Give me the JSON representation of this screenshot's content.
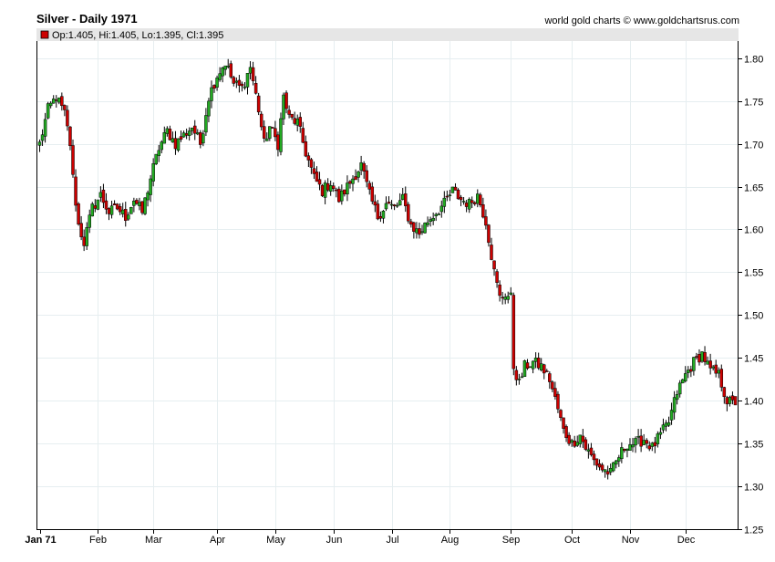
{
  "header": {
    "title": "Silver - Daily 1971",
    "credit": "world gold charts © www.goldchartsrus.com"
  },
  "legend": {
    "text": "Op:1.405, Hi:1.405, Lo:1.395, Cl:1.395",
    "swatch_color": "#cc0000"
  },
  "colors": {
    "up": "#22aa22",
    "down": "#cc0000",
    "wick": "#000000",
    "grid": "#e6eef0",
    "legend_bg": "#e6e6e6"
  },
  "chart_data": {
    "type": "candlestick",
    "title": "Silver - Daily 1971",
    "x_tick_labels": [
      "Jan 71",
      "Feb",
      "Mar",
      "Apr",
      "May",
      "Jun",
      "Jul",
      "Aug",
      "Sep",
      "Oct",
      "Nov",
      "Dec"
    ],
    "y_ticks": [
      1.25,
      1.3,
      1.35,
      1.4,
      1.45,
      1.5,
      1.55,
      1.6,
      1.65,
      1.7,
      1.75,
      1.8
    ],
    "y_tick_labels": [
      "1.25",
      "1.30",
      "1.35",
      "1.40",
      "1.45",
      "1.50",
      "1.55",
      "1.60",
      "1.65",
      "1.70",
      "1.75",
      "1.80"
    ],
    "ylim": [
      1.25,
      1.82
    ],
    "trading_days": 252,
    "month_start_index": [
      0,
      21,
      41,
      64,
      85,
      106,
      127,
      148,
      170,
      192,
      213,
      233
    ],
    "close_anchors": [
      [
        0,
        1.7
      ],
      [
        3,
        1.74
      ],
      [
        6,
        1.755
      ],
      [
        9,
        1.735
      ],
      [
        11,
        1.7
      ],
      [
        12,
        1.66
      ],
      [
        14,
        1.605
      ],
      [
        16,
        1.585
      ],
      [
        19,
        1.625
      ],
      [
        22,
        1.64
      ],
      [
        25,
        1.62
      ],
      [
        28,
        1.625
      ],
      [
        31,
        1.615
      ],
      [
        34,
        1.635
      ],
      [
        37,
        1.62
      ],
      [
        40,
        1.66
      ],
      [
        43,
        1.695
      ],
      [
        46,
        1.715
      ],
      [
        49,
        1.7
      ],
      [
        52,
        1.71
      ],
      [
        55,
        1.72
      ],
      [
        58,
        1.7
      ],
      [
        61,
        1.755
      ],
      [
        64,
        1.78
      ],
      [
        67,
        1.795
      ],
      [
        70,
        1.77
      ],
      [
        73,
        1.765
      ],
      [
        76,
        1.79
      ],
      [
        79,
        1.74
      ],
      [
        81,
        1.7
      ],
      [
        83,
        1.72
      ],
      [
        86,
        1.7
      ],
      [
        88,
        1.755
      ],
      [
        90,
        1.73
      ],
      [
        93,
        1.725
      ],
      [
        96,
        1.69
      ],
      [
        99,
        1.66
      ],
      [
        102,
        1.645
      ],
      [
        105,
        1.655
      ],
      [
        108,
        1.635
      ],
      [
        111,
        1.65
      ],
      [
        114,
        1.665
      ],
      [
        116,
        1.675
      ],
      [
        119,
        1.64
      ],
      [
        122,
        1.615
      ],
      [
        125,
        1.63
      ],
      [
        128,
        1.625
      ],
      [
        131,
        1.635
      ],
      [
        134,
        1.605
      ],
      [
        137,
        1.595
      ],
      [
        140,
        1.61
      ],
      [
        143,
        1.62
      ],
      [
        146,
        1.63
      ],
      [
        149,
        1.645
      ],
      [
        152,
        1.635
      ],
      [
        155,
        1.63
      ],
      [
        158,
        1.64
      ],
      [
        161,
        1.61
      ],
      [
        164,
        1.55
      ],
      [
        166,
        1.52
      ],
      [
        168,
        1.525
      ],
      [
        170,
        1.52
      ],
      [
        171,
        1.44
      ],
      [
        173,
        1.42
      ],
      [
        175,
        1.44
      ],
      [
        178,
        1.445
      ],
      [
        181,
        1.44
      ],
      [
        184,
        1.425
      ],
      [
        187,
        1.39
      ],
      [
        189,
        1.365
      ],
      [
        192,
        1.35
      ],
      [
        195,
        1.36
      ],
      [
        197,
        1.345
      ],
      [
        200,
        1.33
      ],
      [
        203,
        1.32
      ],
      [
        206,
        1.315
      ],
      [
        209,
        1.335
      ],
      [
        212,
        1.35
      ],
      [
        215,
        1.35
      ],
      [
        218,
        1.355
      ],
      [
        221,
        1.345
      ],
      [
        224,
        1.36
      ],
      [
        227,
        1.375
      ],
      [
        230,
        1.41
      ],
      [
        233,
        1.43
      ],
      [
        236,
        1.445
      ],
      [
        239,
        1.455
      ],
      [
        242,
        1.435
      ],
      [
        245,
        1.43
      ],
      [
        248,
        1.4
      ],
      [
        251,
        1.395
      ]
    ],
    "last_bar": {
      "open": 1.405,
      "high": 1.405,
      "low": 1.395,
      "close": 1.395
    },
    "grid": true,
    "legend_position": "top-left"
  }
}
